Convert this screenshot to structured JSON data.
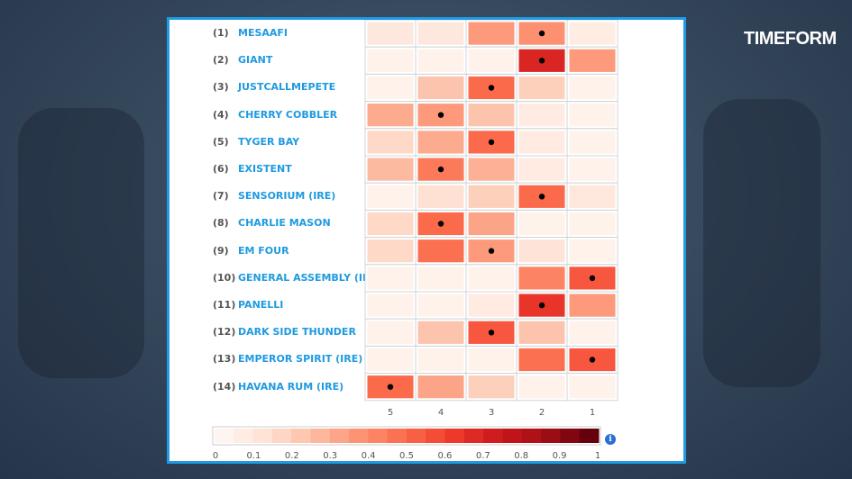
{
  "brand": {
    "logo_text": "TIMEFORM"
  },
  "chart_data": {
    "type": "heatmap",
    "x_categories": [
      "5",
      "4",
      "3",
      "2",
      "1"
    ],
    "rows": [
      {
        "num": "(1)",
        "name": "MESAAFI",
        "values": [
          0.08,
          0.08,
          0.35,
          0.38,
          0.05
        ],
        "marker": "2"
      },
      {
        "num": "(2)",
        "name": "GIANT",
        "values": [
          0.02,
          0.02,
          0.02,
          0.7,
          0.35
        ],
        "marker": "2"
      },
      {
        "num": "(3)",
        "name": "JUSTCALLMEPETE",
        "values": [
          0.02,
          0.22,
          0.5,
          0.18,
          0.02
        ],
        "marker": "3"
      },
      {
        "num": "(4)",
        "name": "CHERRY COBBLER",
        "values": [
          0.3,
          0.35,
          0.22,
          0.06,
          0.02
        ],
        "marker": "4"
      },
      {
        "num": "(5)",
        "name": "TYGER BAY",
        "values": [
          0.15,
          0.3,
          0.5,
          0.06,
          0.02
        ],
        "marker": "3"
      },
      {
        "num": "(6)",
        "name": "EXISTENT",
        "values": [
          0.25,
          0.45,
          0.28,
          0.06,
          0.02
        ],
        "marker": "4"
      },
      {
        "num": "(7)",
        "name": "SENSORIUM (IRE)",
        "values": [
          0.02,
          0.12,
          0.18,
          0.5,
          0.08
        ],
        "marker": "2"
      },
      {
        "num": "(8)",
        "name": "CHARLIE MASON",
        "values": [
          0.15,
          0.5,
          0.32,
          0.02,
          0.02
        ],
        "marker": "4"
      },
      {
        "num": "(9)",
        "name": "EM FOUR",
        "values": [
          0.15,
          0.48,
          0.35,
          0.1,
          0.02
        ],
        "marker": "3"
      },
      {
        "num": "(10)",
        "name": "GENERAL ASSEMBLY (IRE)",
        "values": [
          0.02,
          0.02,
          0.02,
          0.42,
          0.55
        ],
        "marker": "1"
      },
      {
        "num": "(11)",
        "name": "PANELLI",
        "values": [
          0.02,
          0.02,
          0.06,
          0.65,
          0.35
        ],
        "marker": "2"
      },
      {
        "num": "(12)",
        "name": "DARK SIDE THUNDER",
        "values": [
          0.02,
          0.22,
          0.55,
          0.22,
          0.02
        ],
        "marker": "3"
      },
      {
        "num": "(13)",
        "name": "EMPEROR SPIRIT (IRE)",
        "values": [
          0.02,
          0.02,
          0.02,
          0.48,
          0.55
        ],
        "marker": "1"
      },
      {
        "num": "(14)",
        "name": "HAVANA RUM (IRE)",
        "values": [
          0.5,
          0.32,
          0.18,
          0.02,
          0.02
        ],
        "marker": "5"
      }
    ],
    "colorscale": {
      "range": [
        0,
        1
      ],
      "steps": 20,
      "ticks": [
        "0",
        "0.1",
        "0.2",
        "0.3",
        "0.4",
        "0.5",
        "0.6",
        "0.7",
        "0.8",
        "0.9",
        "1"
      ],
      "low": "#fff5f0",
      "high": "#67000d"
    },
    "info_icon": "i"
  },
  "colors": {
    "frame": "#1f9be5",
    "name_text": "#1e9ae0"
  }
}
